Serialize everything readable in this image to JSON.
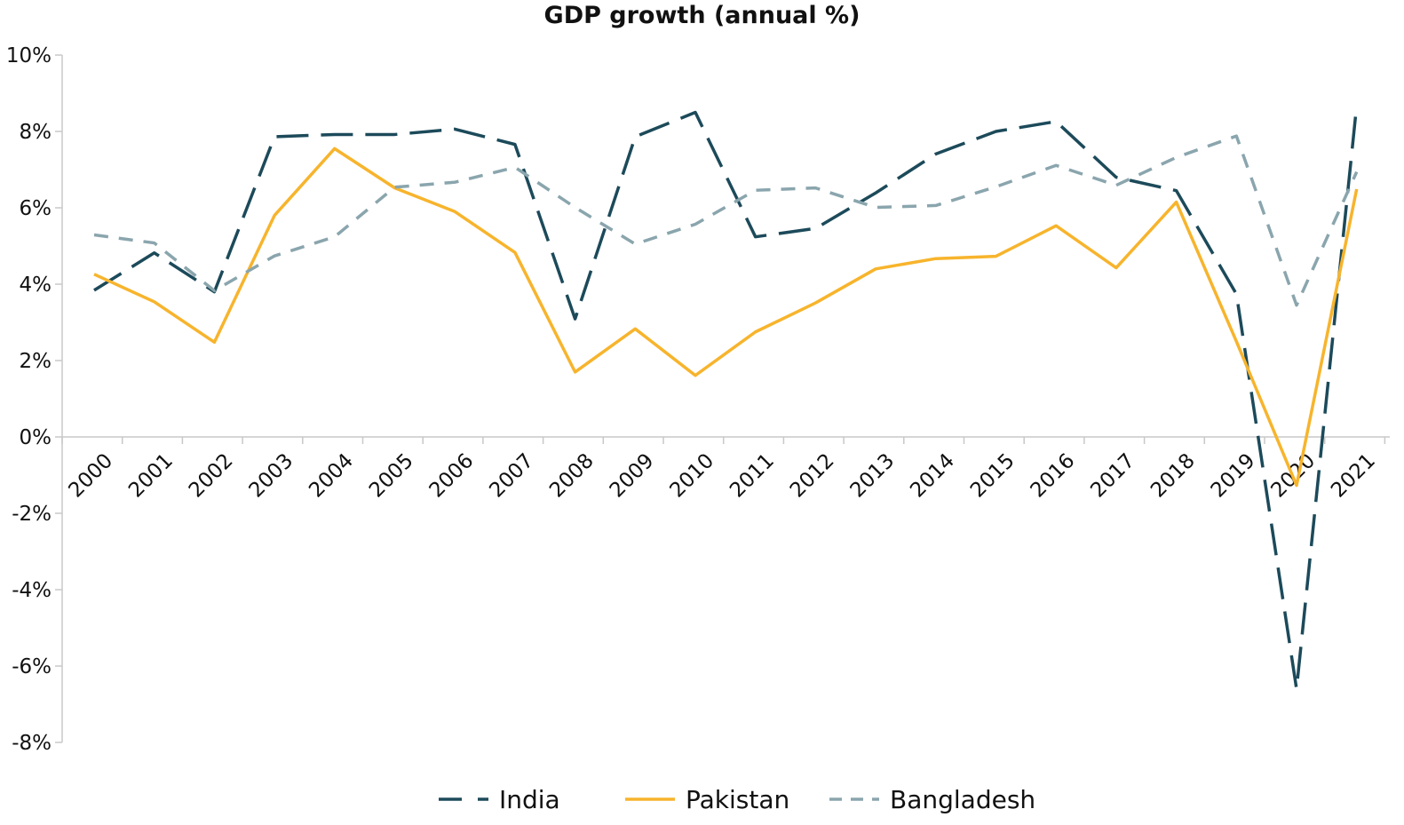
{
  "chart_data": {
    "type": "line",
    "title": "GDP growth (annual %)",
    "categories": [
      "2000",
      "2001",
      "2002",
      "2003",
      "2004",
      "2005",
      "2006",
      "2007",
      "2008",
      "2009",
      "2010",
      "2011",
      "2012",
      "2013",
      "2014",
      "2015",
      "2016",
      "2017",
      "2018",
      "2019",
      "2020",
      "2021"
    ],
    "ylim": [
      -8,
      10
    ],
    "yticks": [
      -8,
      -6,
      -4,
      -2,
      0,
      2,
      4,
      6,
      8,
      10
    ],
    "ytick_labels": [
      "-8%",
      "-6%",
      "-4%",
      "-2%",
      "0%",
      "2%",
      "4%",
      "6%",
      "8%",
      "10%"
    ],
    "grid": false,
    "legend_position": "bottom",
    "series": [
      {
        "name": "India",
        "color": "#1c4a5a",
        "dash": "long-dash",
        "values": [
          3.84,
          4.82,
          3.8,
          7.86,
          7.92,
          7.92,
          8.06,
          7.66,
          3.09,
          7.86,
          8.5,
          5.24,
          5.46,
          6.39,
          7.41,
          8.0,
          8.26,
          6.8,
          6.45,
          3.74,
          -6.6,
          8.68
        ]
      },
      {
        "name": "Pakistan",
        "color": "#f7b42c",
        "dash": "solid",
        "values": [
          4.26,
          3.54,
          2.48,
          5.8,
          7.55,
          6.52,
          5.9,
          4.83,
          1.7,
          2.83,
          1.61,
          2.75,
          3.51,
          4.4,
          4.67,
          4.73,
          5.53,
          4.43,
          6.15,
          2.5,
          -1.27,
          6.49
        ]
      },
      {
        "name": "Bangladesh",
        "color": "#8aa5ad",
        "dash": "short-dash",
        "values": [
          5.29,
          5.08,
          3.83,
          4.74,
          5.24,
          6.54,
          6.67,
          7.06,
          6.01,
          5.05,
          5.57,
          6.46,
          6.52,
          6.01,
          6.06,
          6.55,
          7.11,
          6.59,
          7.32,
          7.88,
          3.45,
          6.94
        ]
      }
    ]
  }
}
